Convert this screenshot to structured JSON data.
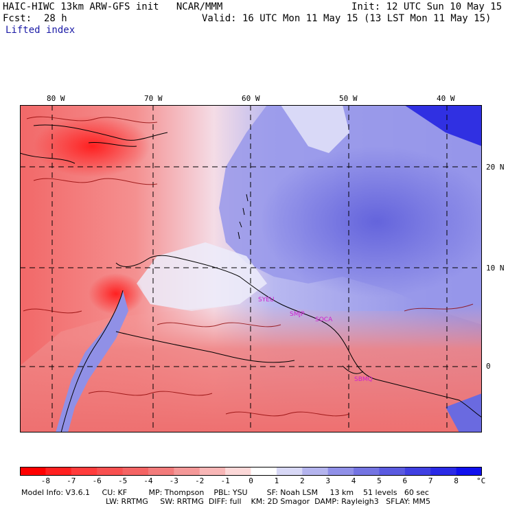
{
  "header": {
    "title": "HAIC-HIWC 13km ARW-GFS init   NCAR/MMM",
    "init": "Init: 12 UTC Sun 10 May 15",
    "fcst_label": "Fcst:",
    "fcst_value": "28 h",
    "valid": "Valid: 16 UTC Mon 11 May 15 (13 LST Mon 11 May 15)",
    "field": "Lifted index"
  },
  "map": {
    "longitude_labels": [
      "80 W",
      "70 W",
      "60 W",
      "50 W",
      "40 W"
    ],
    "latitude_labels": [
      "20 N",
      "10 N",
      "0"
    ],
    "station_labels": [
      "SYEU",
      "SMJP",
      "SOCA",
      "SBMQ"
    ],
    "colors": {
      "neg_strong": "#ff2a2a",
      "neg_mid": "#f0707a",
      "neg_light": "#f8b8bc",
      "neutral": "#f4f0f8",
      "pos_light": "#c8c8f4",
      "pos_mid": "#7070e0",
      "pos_strong": "#1e1ee6",
      "coast": "#000000",
      "contour": "#8b0000",
      "station": "#d020d0"
    }
  },
  "colorbar": {
    "tick_labels": [
      "-8",
      "-7",
      "-6",
      "-5",
      "-4",
      "-3",
      "-2",
      "-1",
      "0",
      "1",
      "2",
      "3",
      "4",
      "5",
      "6",
      "7",
      "8"
    ],
    "unit": "°C",
    "colors": [
      "#ff0000",
      "#ff2020",
      "#ff3c3c",
      "#f85050",
      "#f46464",
      "#f27b7b",
      "#f49898",
      "#f8b6b6",
      "#fcd8d8",
      "#ffffff",
      "#d8d8f6",
      "#b4b4ee",
      "#9090e8",
      "#7474e2",
      "#5a5ae0",
      "#4040e2",
      "#2a2ae6",
      "#1010ee"
    ]
  },
  "model_info": {
    "line1": "Model Info: V3.6.1     CU: KF         MP: Thompson    PBL: YSU        SF: Noah LSM     13 km    51 levels   60 sec",
    "line2": "LW: RRTMG     SW: RRTMG  DIFF: full    KM: 2D Smagor  DAMP: Rayleigh3   SFLAY: MM5"
  }
}
